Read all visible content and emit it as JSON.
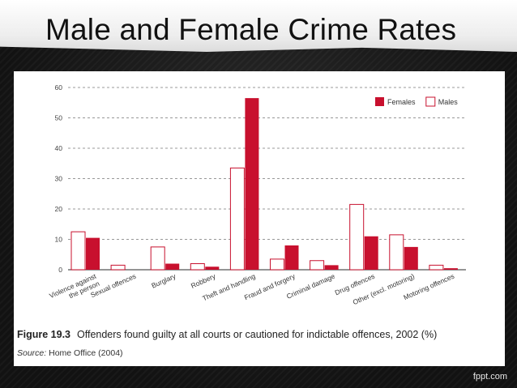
{
  "slide": {
    "title": "Male and Female Crime Rates",
    "footer_brand": "fppt.com"
  },
  "figure": {
    "label": "Figure 19.3",
    "caption": "Offenders found guilty at all courts or cautioned for indictable offences, 2002 (%)",
    "source_label": "Source:",
    "source_text": " Home Office (2004)"
  },
  "colors": {
    "females": "#c8102e",
    "males": "#ffffff",
    "male_outline": "#c8102e",
    "grid": "#777777"
  },
  "chart_data": {
    "type": "bar",
    "title": "",
    "xlabel": "",
    "ylabel": "",
    "ylim": [
      0,
      60
    ],
    "yticks": [
      0,
      10,
      20,
      30,
      40,
      50,
      60
    ],
    "grid": "horizontal-dashed",
    "legend_position": "top-right",
    "categories": [
      "Violence against the person",
      "Sexual offences",
      "Burglary",
      "Robbery",
      "Theft and handling",
      "Fraud and forgery",
      "Criminal damage",
      "Drug offences",
      "Other (excl. motoring)",
      "Motoring offences"
    ],
    "category_lines": [
      [
        "Violence against",
        "the person"
      ],
      [
        "Sexual offences"
      ],
      [
        "Burglary"
      ],
      [
        "Robbery"
      ],
      [
        "Theft and handling"
      ],
      [
        "Fraud and forgery"
      ],
      [
        "Criminal damage"
      ],
      [
        "Drug offences"
      ],
      [
        "Other (excl. motoring)"
      ],
      [
        "Motoring offences"
      ]
    ],
    "series": [
      {
        "name": "Males",
        "values": [
          12.5,
          1.5,
          7.5,
          2,
          33.5,
          3.5,
          3,
          21.5,
          11.5,
          1.5
        ]
      },
      {
        "name": "Females",
        "values": [
          10.5,
          0,
          2,
          1,
          56.5,
          8,
          1.5,
          11,
          7.5,
          0.5
        ]
      }
    ]
  }
}
